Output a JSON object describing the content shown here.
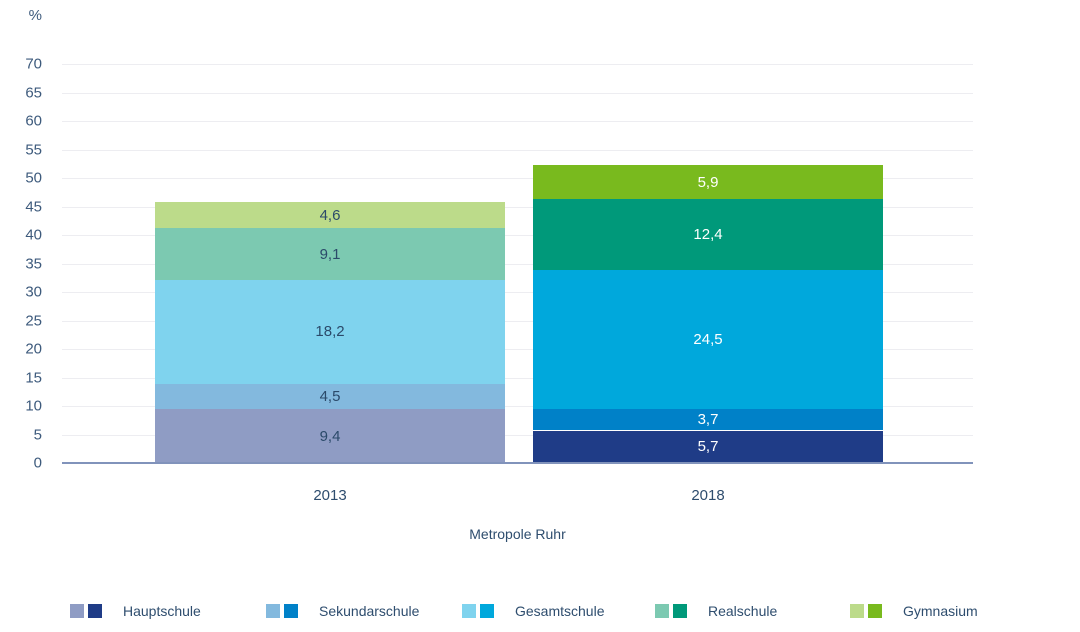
{
  "chart_data": {
    "type": "bar",
    "stacked": true,
    "title": "",
    "unit_label": "%",
    "xlabel": "Metropole Ruhr",
    "ylim": [
      0,
      70
    ],
    "ytick_step": 5,
    "grid": true,
    "legend_position": "bottom",
    "categories": [
      "2013",
      "2018"
    ],
    "series": [
      {
        "name": "Hauptschule",
        "values": [
          9.4,
          5.7
        ],
        "display_labels": [
          "9,4",
          "5,7"
        ],
        "colors": [
          "#8f9cc4",
          "#1f3c87"
        ]
      },
      {
        "name": "Sekundarschule",
        "values": [
          4.5,
          3.7
        ],
        "display_labels": [
          "4,5",
          "3,7"
        ],
        "colors": [
          "#83b9de",
          "#0081c8"
        ]
      },
      {
        "name": "Gesamtschule",
        "values": [
          18.2,
          24.5
        ],
        "display_labels": [
          "18,2",
          "24,5"
        ],
        "colors": [
          "#7fd3ee",
          "#00a8dc"
        ]
      },
      {
        "name": "Realschule",
        "values": [
          9.1,
          12.4
        ],
        "display_labels": [
          "9,1",
          "12,4"
        ],
        "colors": [
          "#7cc9b1",
          "#00997a"
        ]
      },
      {
        "name": "Gymnasium",
        "values": [
          4.6,
          5.9
        ],
        "display_labels": [
          "4,6",
          "5,9"
        ],
        "colors": [
          "#bcdb8a",
          "#79ba1e"
        ]
      }
    ],
    "totals": [
      45.8,
      52.2
    ],
    "value_label_colors": [
      "#2b4a6a",
      "#ffffff"
    ],
    "legend": [
      "Hauptschule",
      "Sekundarschule",
      "Gesamtschule",
      "Realschule",
      "Gymnasium"
    ]
  },
  "colors": {
    "tick_text": "#3d5a7c",
    "axis_line": "#8193bb",
    "gridline": "#ededf1",
    "background": "#ffffff"
  }
}
